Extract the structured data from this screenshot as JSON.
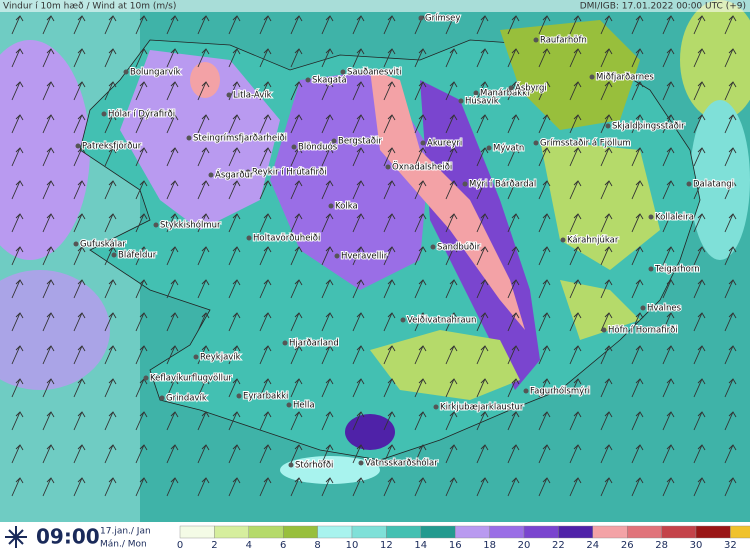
{
  "header": {
    "title": "Vindur í 10m hæð / Wind at 10m (m/s)",
    "source": "DMI/IGB: 17.01.2022 00:00 UTC (+9)"
  },
  "time": {
    "clock": "09:00",
    "date": "17.jan./ Jan",
    "day": "Mán./ Mon"
  },
  "legend": {
    "ticks": [
      0,
      2,
      4,
      6,
      8,
      10,
      12,
      14,
      16,
      18,
      20,
      22,
      24,
      26,
      28,
      30,
      32
    ],
    "colors": [
      "#f4fbe6",
      "#d6ee9e",
      "#b5da6a",
      "#98bf3c",
      "#a8f3ee",
      "#7fe0d8",
      "#43c0b2",
      "#239a8f",
      "#b99af0",
      "#9a6ee6",
      "#7a45cf",
      "#4f22a8",
      "#f3a2a6",
      "#e0737a",
      "#c4434a",
      "#9a1616",
      "#f0c22c"
    ]
  },
  "places": [
    "Grímsey",
    "Raufarhöfn",
    "Bolungarvík",
    "Skagatá",
    "Sauðanesviti",
    "Manárbakki",
    "Miðfjarðarnes",
    "Ásbyrgi",
    "Húsavík",
    "Litla-Ávík",
    "Hólar í Dýrafirði",
    "Steingrímsfjarðarheiði",
    "Patreksfjörður",
    "Blönduós",
    "Bergstaðir",
    "Akureyri",
    "Mývatn",
    "Grímsstaðir á Fjöllum",
    "Skjaldþingsstaðir",
    "Öxnadalsheiði",
    "Mýri í Bárðardal",
    "Dalatangi",
    "Reykir í Hrútafirði",
    "Ásgarður",
    "Kolka",
    "Stykkishólmur",
    "Kollaleira",
    "Gufuskálar",
    "Holtavörðuheiði",
    "Kárahnjúkar",
    "Sandbúðir",
    "Bláfeldur",
    "Hveravellir",
    "Teigarhorn",
    "Hvalnes",
    "Veiðivatnahraun",
    "Höfn í Hornafirði",
    "Hjarðarland",
    "Reykjavík",
    "Keflavíkurflugvöllur",
    "Fagurhólsmýri",
    "Grindavík",
    "Eyrarbakki",
    "Hella",
    "Kirkjubæjarklaustur",
    "Stórhöfði",
    "Vatnsskarðshólar"
  ]
}
